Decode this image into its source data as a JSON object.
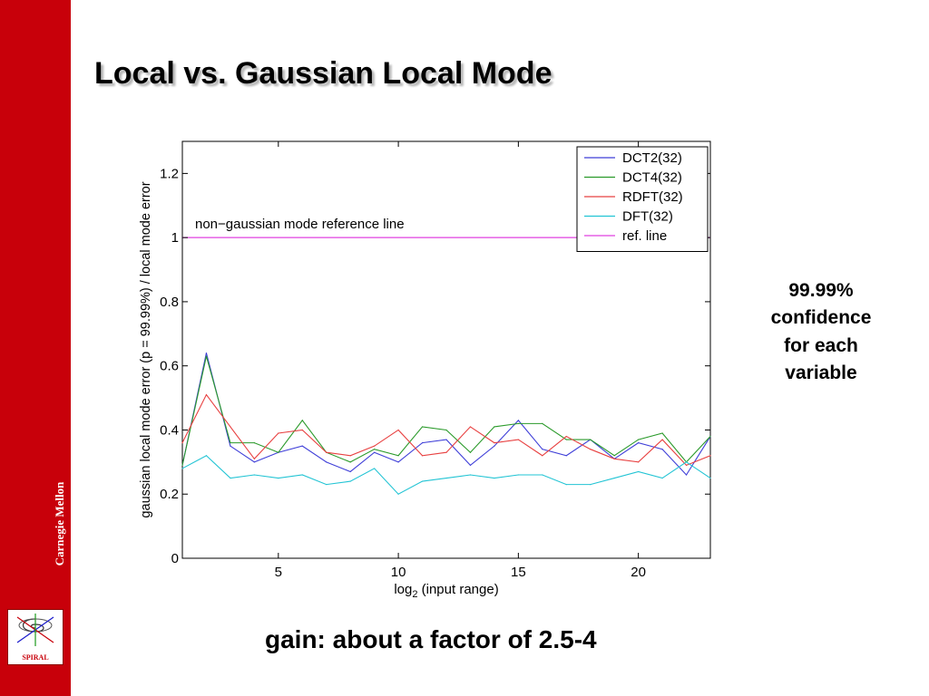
{
  "slide": {
    "title": "Local vs. Gaussian Local Mode",
    "side_note": "99.99%\nconfidence\nfor each\nvariable",
    "bottom_note": "gain: about a factor of 2.5-4",
    "sidebar_org": "Carnegie Mellon",
    "logo_text": "SPIRAL",
    "sidebar_color": "#c8000a"
  },
  "chart_data": {
    "type": "line",
    "title": "",
    "xlabel_main": "log",
    "xlabel_sub": "2",
    "xlabel_rest": " (input range)",
    "ylabel": "gaussian local mode error (p = 99.99%) / local mode error",
    "xlim": [
      1,
      23
    ],
    "ylim": [
      0,
      1.3
    ],
    "x_ticks": [
      5,
      10,
      15,
      20
    ],
    "y_ticks": [
      0,
      0.2,
      0.4,
      0.6,
      0.8,
      1,
      1.2
    ],
    "y_tick_labels": [
      "0",
      "0.2",
      "0.4",
      "0.6",
      "0.8",
      "1",
      "1.2"
    ],
    "grid": false,
    "legend_position": "top-right",
    "x": [
      1,
      2,
      3,
      4,
      5,
      6,
      7,
      8,
      9,
      10,
      11,
      12,
      13,
      14,
      15,
      16,
      17,
      18,
      19,
      20,
      21,
      22,
      23
    ],
    "series": [
      {
        "name": "DCT2(32)",
        "color": "#3f3fd8",
        "values": [
          0.29,
          0.64,
          0.35,
          0.3,
          0.33,
          0.35,
          0.3,
          0.27,
          0.33,
          0.3,
          0.36,
          0.37,
          0.29,
          0.35,
          0.43,
          0.34,
          0.32,
          0.37,
          0.31,
          0.36,
          0.34,
          0.26,
          0.38
        ]
      },
      {
        "name": "DCT4(32)",
        "color": "#2a9a2a",
        "values": [
          0.29,
          0.63,
          0.36,
          0.36,
          0.33,
          0.43,
          0.33,
          0.3,
          0.34,
          0.32,
          0.41,
          0.4,
          0.33,
          0.41,
          0.42,
          0.42,
          0.37,
          0.37,
          0.32,
          0.37,
          0.39,
          0.3,
          0.38
        ]
      },
      {
        "name": "RDFT(32)",
        "color": "#e84040",
        "values": [
          0.36,
          0.51,
          0.41,
          0.31,
          0.39,
          0.4,
          0.33,
          0.32,
          0.35,
          0.4,
          0.32,
          0.33,
          0.41,
          0.36,
          0.37,
          0.32,
          0.38,
          0.34,
          0.31,
          0.3,
          0.37,
          0.29,
          0.32
        ]
      },
      {
        "name": "DFT(32)",
        "color": "#22c4d4",
        "values": [
          0.28,
          0.32,
          0.25,
          0.26,
          0.25,
          0.26,
          0.23,
          0.24,
          0.28,
          0.2,
          0.24,
          0.25,
          0.26,
          0.25,
          0.26,
          0.26,
          0.23,
          0.23,
          0.25,
          0.27,
          0.25,
          0.3,
          0.25
        ]
      }
    ],
    "reference_line": {
      "name": "ref. line",
      "y": 1,
      "color": "#e040e0",
      "annotation": "non−gaussian mode reference line"
    }
  }
}
